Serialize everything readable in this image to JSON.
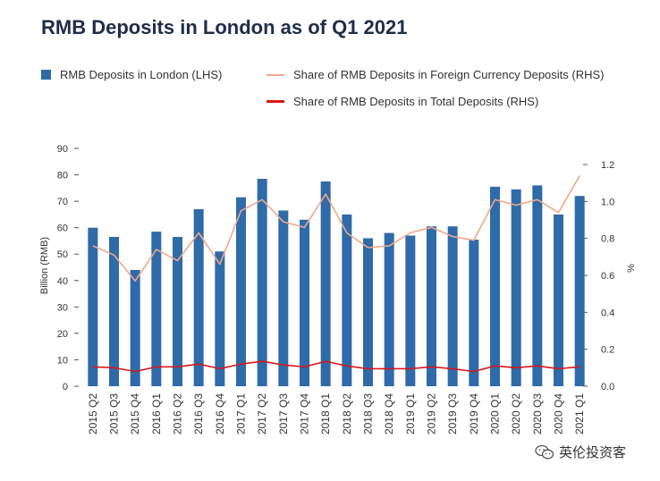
{
  "chart_data": {
    "type": "bar",
    "title": "RMB Deposits in London as of Q1 2021",
    "categories": [
      "2015 Q2",
      "2015 Q3",
      "2015 Q4",
      "2016 Q1",
      "2016 Q2",
      "2016 Q3",
      "2016 Q4",
      "2017 Q1",
      "2017 Q2",
      "2017 Q3",
      "2017 Q4",
      "2018 Q1",
      "2018 Q2",
      "2018 Q3",
      "2018 Q4",
      "2019 Q1",
      "2019 Q2",
      "2019 Q3",
      "2019 Q4",
      "2020 Q1",
      "2020 Q2",
      "2020 Q3",
      "2020 Q4",
      "2021 Q1"
    ],
    "series": [
      {
        "name": "RMB Deposits in London (LHS)",
        "type": "bar",
        "axis": "left",
        "values": [
          60,
          56.5,
          44,
          58.5,
          56.5,
          67,
          51,
          71.5,
          78.5,
          66.5,
          63,
          77.5,
          65,
          56,
          58,
          57,
          60.5,
          60.5,
          55.5,
          75.5,
          74.5,
          76,
          65,
          72
        ]
      },
      {
        "name": "Share of RMB Deposits in Foreign Currency Deposits (RHS)",
        "type": "line",
        "axis": "right",
        "values": [
          0.76,
          0.71,
          0.57,
          0.74,
          0.68,
          0.83,
          0.66,
          0.95,
          1.01,
          0.89,
          0.86,
          1.04,
          0.83,
          0.75,
          0.76,
          0.83,
          0.86,
          0.81,
          0.79,
          1.01,
          0.98,
          1.01,
          0.94,
          1.14
        ]
      },
      {
        "name": "Share of RMB Deposits in Total Deposits (RHS)",
        "type": "line",
        "axis": "right",
        "values": [
          0.105,
          0.1,
          0.08,
          0.105,
          0.105,
          0.12,
          0.095,
          0.12,
          0.135,
          0.115,
          0.105,
          0.135,
          0.11,
          0.095,
          0.095,
          0.095,
          0.105,
          0.095,
          0.08,
          0.11,
          0.1,
          0.11,
          0.095,
          0.105
        ]
      }
    ],
    "ylabel_left": "Billion (RMB)",
    "ylabel_right": "%",
    "ylim_left": [
      0,
      90
    ],
    "ylim_right": [
      0,
      1.3
    ],
    "yticks_left": [
      "0",
      "10",
      "20",
      "30",
      "40",
      "50",
      "60",
      "70",
      "80",
      "90"
    ],
    "yticks_right": [
      "0.0",
      "0.2",
      "0.4",
      "0.6",
      "0.8",
      "1.0",
      "1.2"
    ],
    "legend_position": "top",
    "grid": false
  },
  "colors": {
    "bar": "#2e6ba8",
    "fc_line": "#f0a88a",
    "total_line": "#d7191c",
    "title": "#1f2d4a"
  },
  "watermark": {
    "text": "英伦投资客",
    "icon": "wechat-icon"
  }
}
